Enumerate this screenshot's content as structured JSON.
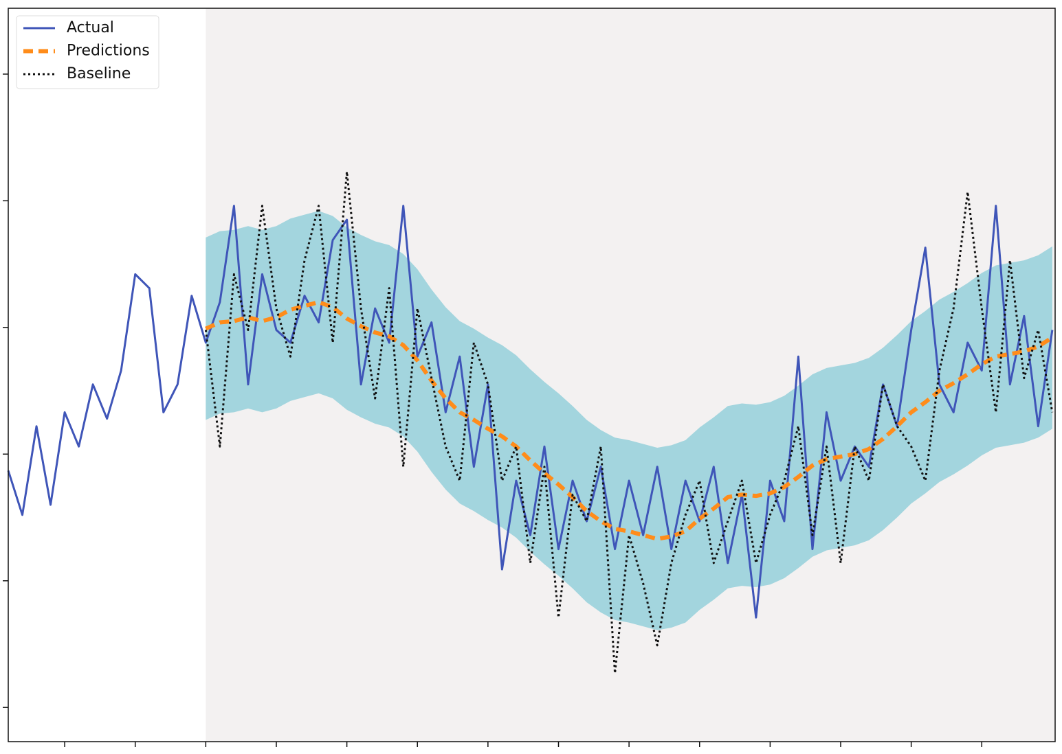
{
  "chart_data": {
    "type": "line",
    "xlim": [
      10,
      752
    ],
    "ylim": [
      -3.27,
      2.52
    ],
    "xticks": [
      50,
      100,
      150,
      200,
      250,
      300,
      350,
      400,
      450,
      500,
      550,
      600,
      650,
      700
    ],
    "yticks": [
      -3,
      -2,
      -1,
      0,
      1,
      2
    ],
    "legend": "upper left",
    "shaded_from": 150,
    "shade_color": "#f3f1f1",
    "band": {
      "color": "#a3d5de",
      "x": [
        150,
        160,
        170,
        180,
        190,
        200,
        210,
        220,
        230,
        240,
        250,
        260,
        270,
        280,
        290,
        300,
        310,
        320,
        330,
        340,
        350,
        360,
        370,
        380,
        390,
        400,
        410,
        420,
        430,
        440,
        450,
        460,
        470,
        480,
        490,
        500,
        510,
        520,
        530,
        540,
        550,
        560,
        570,
        580,
        590,
        600,
        610,
        620,
        630,
        640,
        650,
        660,
        670,
        680,
        690,
        700,
        710,
        720,
        730,
        740,
        750
      ],
      "upper": [
        0.71,
        0.76,
        0.77,
        0.8,
        0.77,
        0.8,
        0.86,
        0.89,
        0.92,
        0.88,
        0.79,
        0.73,
        0.68,
        0.65,
        0.58,
        0.46,
        0.3,
        0.16,
        0.05,
        -0.01,
        -0.08,
        -0.14,
        -0.22,
        -0.33,
        -0.43,
        -0.52,
        -0.62,
        -0.73,
        -0.81,
        -0.87,
        -0.89,
        -0.92,
        -0.95,
        -0.93,
        -0.89,
        -0.79,
        -0.71,
        -0.62,
        -0.6,
        -0.61,
        -0.59,
        -0.54,
        -0.46,
        -0.37,
        -0.32,
        -0.3,
        -0.28,
        -0.24,
        -0.16,
        -0.06,
        0.05,
        0.13,
        0.22,
        0.28,
        0.35,
        0.43,
        0.49,
        0.51,
        0.53,
        0.57,
        0.64
      ],
      "lower": [
        -0.73,
        -0.68,
        -0.67,
        -0.64,
        -0.67,
        -0.64,
        -0.58,
        -0.55,
        -0.52,
        -0.56,
        -0.65,
        -0.71,
        -0.76,
        -0.79,
        -0.86,
        -0.98,
        -1.14,
        -1.28,
        -1.39,
        -1.45,
        -1.52,
        -1.58,
        -1.66,
        -1.77,
        -1.87,
        -1.96,
        -2.06,
        -2.17,
        -2.25,
        -2.31,
        -2.33,
        -2.36,
        -2.39,
        -2.37,
        -2.33,
        -2.23,
        -2.15,
        -2.06,
        -2.04,
        -2.05,
        -2.03,
        -1.98,
        -1.9,
        -1.81,
        -1.76,
        -1.74,
        -1.72,
        -1.68,
        -1.6,
        -1.5,
        -1.39,
        -1.31,
        -1.22,
        -1.16,
        -1.09,
        -1.01,
        -0.95,
        -0.93,
        -0.91,
        -0.87,
        -0.8
      ]
    },
    "series": [
      {
        "name": "Actual",
        "color": "#3f55b8",
        "style": "solid",
        "x": [
          10,
          20,
          30,
          40,
          50,
          60,
          70,
          80,
          90,
          100,
          110,
          120,
          130,
          140,
          150,
          160,
          170,
          180,
          190,
          200,
          210,
          220,
          230,
          240,
          250,
          260,
          270,
          280,
          290,
          300,
          310,
          320,
          330,
          340,
          350,
          360,
          370,
          380,
          390,
          400,
          410,
          420,
          430,
          440,
          450,
          460,
          470,
          480,
          490,
          500,
          510,
          520,
          530,
          540,
          550,
          560,
          570,
          580,
          590,
          600,
          610,
          620,
          630,
          640,
          650,
          660,
          670,
          680,
          690,
          700,
          710,
          720,
          730,
          740,
          750
        ],
        "values": [
          -1.13,
          -1.48,
          -0.78,
          -1.4,
          -0.67,
          -0.94,
          -0.45,
          -0.72,
          -0.34,
          0.42,
          0.31,
          -0.67,
          -0.45,
          0.25,
          -0.12,
          0.2,
          0.96,
          -0.45,
          0.42,
          -0.02,
          -0.12,
          0.25,
          0.04,
          0.69,
          0.85,
          -0.45,
          0.15,
          -0.12,
          0.96,
          -0.23,
          0.04,
          -0.67,
          -0.23,
          -1.1,
          -0.45,
          -1.91,
          -1.21,
          -1.64,
          -0.94,
          -1.75,
          -1.21,
          -1.53,
          -1.1,
          -1.75,
          -1.21,
          -1.64,
          -1.1,
          -1.75,
          -1.21,
          -1.53,
          -1.1,
          -1.86,
          -1.32,
          -2.29,
          -1.21,
          -1.53,
          -0.23,
          -1.75,
          -0.67,
          -1.21,
          -0.94,
          -1.1,
          -0.45,
          -0.78,
          -0.02,
          0.63,
          -0.45,
          -0.67,
          -0.12,
          -0.34,
          0.96,
          -0.45,
          0.09,
          -0.78,
          -0.02
        ]
      },
      {
        "name": "Predictions",
        "color": "#ff8c1a",
        "style": "dashed",
        "x": [
          150,
          160,
          170,
          180,
          190,
          200,
          210,
          220,
          230,
          240,
          250,
          260,
          270,
          280,
          290,
          300,
          310,
          320,
          330,
          340,
          350,
          360,
          370,
          380,
          390,
          400,
          410,
          420,
          430,
          440,
          450,
          460,
          470,
          480,
          490,
          500,
          510,
          520,
          530,
          540,
          550,
          560,
          570,
          580,
          590,
          600,
          610,
          620,
          630,
          640,
          650,
          660,
          670,
          680,
          690,
          700,
          710,
          720,
          730,
          740,
          750
        ],
        "values": [
          -0.01,
          0.04,
          0.05,
          0.08,
          0.05,
          0.08,
          0.14,
          0.17,
          0.2,
          0.16,
          0.07,
          0.01,
          -0.04,
          -0.07,
          -0.14,
          -0.26,
          -0.42,
          -0.56,
          -0.67,
          -0.73,
          -0.8,
          -0.86,
          -0.94,
          -1.05,
          -1.15,
          -1.24,
          -1.34,
          -1.45,
          -1.53,
          -1.59,
          -1.61,
          -1.64,
          -1.67,
          -1.65,
          -1.61,
          -1.51,
          -1.43,
          -1.34,
          -1.32,
          -1.33,
          -1.31,
          -1.26,
          -1.18,
          -1.09,
          -1.04,
          -1.02,
          -1.0,
          -0.96,
          -0.88,
          -0.78,
          -0.67,
          -0.59,
          -0.5,
          -0.44,
          -0.37,
          -0.29,
          -0.23,
          -0.21,
          -0.19,
          -0.15,
          -0.08
        ]
      },
      {
        "name": "Baseline",
        "color": "#111111",
        "style": "dotted",
        "x": [
          150,
          160,
          170,
          180,
          190,
          200,
          210,
          220,
          230,
          240,
          250,
          260,
          270,
          280,
          290,
          300,
          310,
          320,
          330,
          340,
          350,
          360,
          370,
          380,
          390,
          400,
          410,
          420,
          430,
          440,
          450,
          460,
          470,
          480,
          490,
          500,
          510,
          520,
          530,
          540,
          550,
          560,
          570,
          580,
          590,
          600,
          610,
          620,
          630,
          640,
          650,
          660,
          670,
          680,
          690,
          700,
          710,
          720,
          730,
          740,
          750
        ],
        "values": [
          -0.02,
          -0.94,
          0.42,
          -0.02,
          0.96,
          0.15,
          -0.23,
          0.53,
          0.96,
          -0.12,
          1.23,
          0.15,
          -0.56,
          0.31,
          -1.1,
          0.15,
          -0.4,
          -0.94,
          -1.21,
          -0.12,
          -0.45,
          -1.21,
          -0.94,
          -1.86,
          -1.1,
          -2.29,
          -1.32,
          -1.53,
          -0.94,
          -2.73,
          -1.64,
          -2.02,
          -2.51,
          -1.86,
          -1.48,
          -1.21,
          -1.86,
          -1.53,
          -1.21,
          -1.86,
          -1.48,
          -1.21,
          -0.78,
          -1.64,
          -0.94,
          -1.86,
          -0.94,
          -1.21,
          -0.45,
          -0.78,
          -0.94,
          -1.21,
          -0.34,
          0.15,
          1.07,
          0.15,
          -0.67,
          0.53,
          -0.4,
          -0.02,
          -0.67
        ]
      }
    ]
  }
}
